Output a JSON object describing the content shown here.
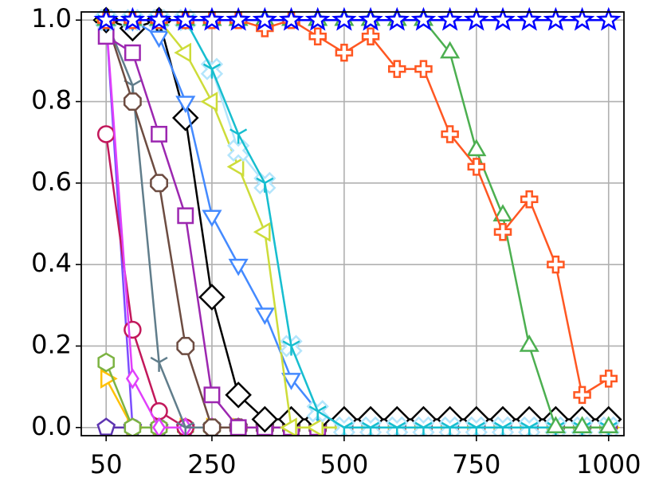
{
  "chart_data": {
    "type": "line",
    "x": [
      50,
      100,
      150,
      200,
      250,
      300,
      350,
      400,
      450,
      500,
      550,
      600,
      650,
      700,
      750,
      800,
      850,
      900,
      950,
      1000
    ],
    "series": [
      {
        "color": "#0000ff",
        "marker": "star",
        "values": [
          1,
          1,
          1,
          1,
          1,
          1,
          1,
          1,
          1,
          1,
          1,
          1,
          1,
          1,
          1,
          1,
          1,
          1,
          1,
          1
        ]
      },
      {
        "color": "#ff5722",
        "marker": "plus",
        "values": [
          1,
          1,
          1,
          1,
          1,
          1,
          0.98,
          1,
          0.96,
          0.92,
          0.96,
          0.88,
          0.88,
          0.72,
          0.64,
          0.48,
          0.56,
          0.4,
          0.08,
          0.12
        ]
      },
      {
        "color": "#4caf50",
        "marker": "triangle-up",
        "values": [
          1,
          1,
          1,
          1,
          1,
          1,
          1,
          1,
          1,
          1,
          1,
          1,
          1,
          0.92,
          0.68,
          0.52,
          0.2,
          0,
          0,
          0
        ]
      },
      {
        "color": "#17becf",
        "marker": "tri",
        "values": [
          1,
          1,
          1,
          1,
          0.88,
          0.72,
          0.6,
          0.2,
          0.04,
          0,
          0,
          0,
          0,
          0,
          0,
          0,
          0,
          0,
          0,
          0
        ]
      },
      {
        "color": "#b3e5fc",
        "marker": "x",
        "values": [
          1,
          1,
          1,
          1,
          0.88,
          0.68,
          0.6,
          0.2,
          0.04,
          0,
          0,
          0,
          0,
          0,
          0,
          0,
          0,
          0,
          0,
          0
        ]
      },
      {
        "color": "#cddc39",
        "marker": "triangle-left",
        "values": [
          1,
          1,
          1,
          0.92,
          0.8,
          0.64,
          0.48,
          0,
          0,
          0,
          0,
          0,
          0,
          0,
          0,
          0,
          0,
          0,
          0,
          0
        ]
      },
      {
        "color": "#448aff",
        "marker": "triangle-down",
        "values": [
          1,
          1,
          0.96,
          0.8,
          0.52,
          0.4,
          0.28,
          0.12,
          0.04,
          0,
          0,
          0,
          0,
          0,
          0,
          0,
          0,
          0,
          0,
          0
        ]
      },
      {
        "color": "#000000",
        "marker": "diamond",
        "values": [
          1,
          0.98,
          1,
          0.76,
          0.32,
          0.08,
          0.02,
          0.02,
          0.02,
          0.02,
          0.02,
          0.02,
          0.02,
          0.02,
          0.02,
          0.02,
          0.02,
          0.02,
          0.02,
          0.02
        ]
      },
      {
        "color": "#9c27b0",
        "marker": "square",
        "values": [
          0.96,
          0.92,
          0.72,
          0.52,
          0.08,
          0,
          0,
          0,
          0,
          0,
          0,
          0,
          0,
          0,
          0,
          0,
          0,
          0,
          0,
          0
        ]
      },
      {
        "color": "#6d4c41",
        "marker": "octagon",
        "values": [
          1,
          0.8,
          0.6,
          0.2,
          0,
          0,
          0,
          0,
          0,
          0,
          0,
          0,
          0,
          0,
          0,
          0,
          0,
          0,
          0,
          0
        ]
      },
      {
        "color": "#607d8b",
        "marker": "tri",
        "values": [
          1,
          0.84,
          0.16,
          0,
          0,
          0,
          0,
          0,
          0,
          0,
          0,
          0,
          0,
          0,
          0,
          0,
          0,
          0,
          0,
          0
        ]
      },
      {
        "color": "#e040fb",
        "marker": "thin-diamond",
        "values": [
          1,
          0.12,
          0,
          0,
          0,
          0,
          0,
          0,
          0,
          0,
          0,
          0,
          0,
          0,
          0,
          0,
          0,
          0,
          0,
          0
        ]
      },
      {
        "color": "#c2185b",
        "marker": "circle",
        "values": [
          0.72,
          0.24,
          0.04,
          0,
          0,
          0,
          0,
          0,
          0,
          0,
          0,
          0,
          0,
          0,
          0,
          0,
          0,
          0,
          0,
          0
        ]
      },
      {
        "color": "#7cb342",
        "marker": "hexagon",
        "values": [
          0.16,
          0,
          0,
          0,
          0,
          0,
          0,
          0,
          0,
          0,
          0,
          0,
          0,
          0,
          0,
          0,
          0,
          0,
          0,
          0
        ]
      },
      {
        "color": "#ffc107",
        "marker": "triangle-right",
        "values": [
          0.12,
          0,
          0,
          0,
          0,
          0,
          0,
          0,
          0,
          0,
          0,
          0,
          0,
          0,
          0,
          0,
          0,
          0,
          0,
          0
        ]
      },
      {
        "color": "#5e35b1",
        "marker": "pentagon",
        "values": [
          0,
          0,
          0,
          0,
          0,
          0,
          0,
          0,
          0,
          0,
          0,
          0,
          0,
          0,
          0,
          0,
          0,
          0,
          0,
          0
        ]
      },
      {
        "color": "#7c4dff",
        "marker": "circle",
        "values": [
          1,
          0,
          0,
          0,
          0,
          0,
          0,
          0,
          0,
          0,
          0,
          0,
          0,
          0,
          0,
          0,
          0,
          0,
          0,
          0
        ]
      }
    ],
    "xlim": [
      3,
      1029
    ],
    "xticks": [
      50,
      250,
      500,
      750,
      1000
    ],
    "ylim": [
      -0.02,
      1.02
    ],
    "yticks": [
      {
        "value": 0,
        "label": "0.0"
      },
      0.2,
      0.4,
      0.6,
      0.8,
      {
        "value": 1,
        "label": "1.0"
      }
    ],
    "grid": true
  }
}
